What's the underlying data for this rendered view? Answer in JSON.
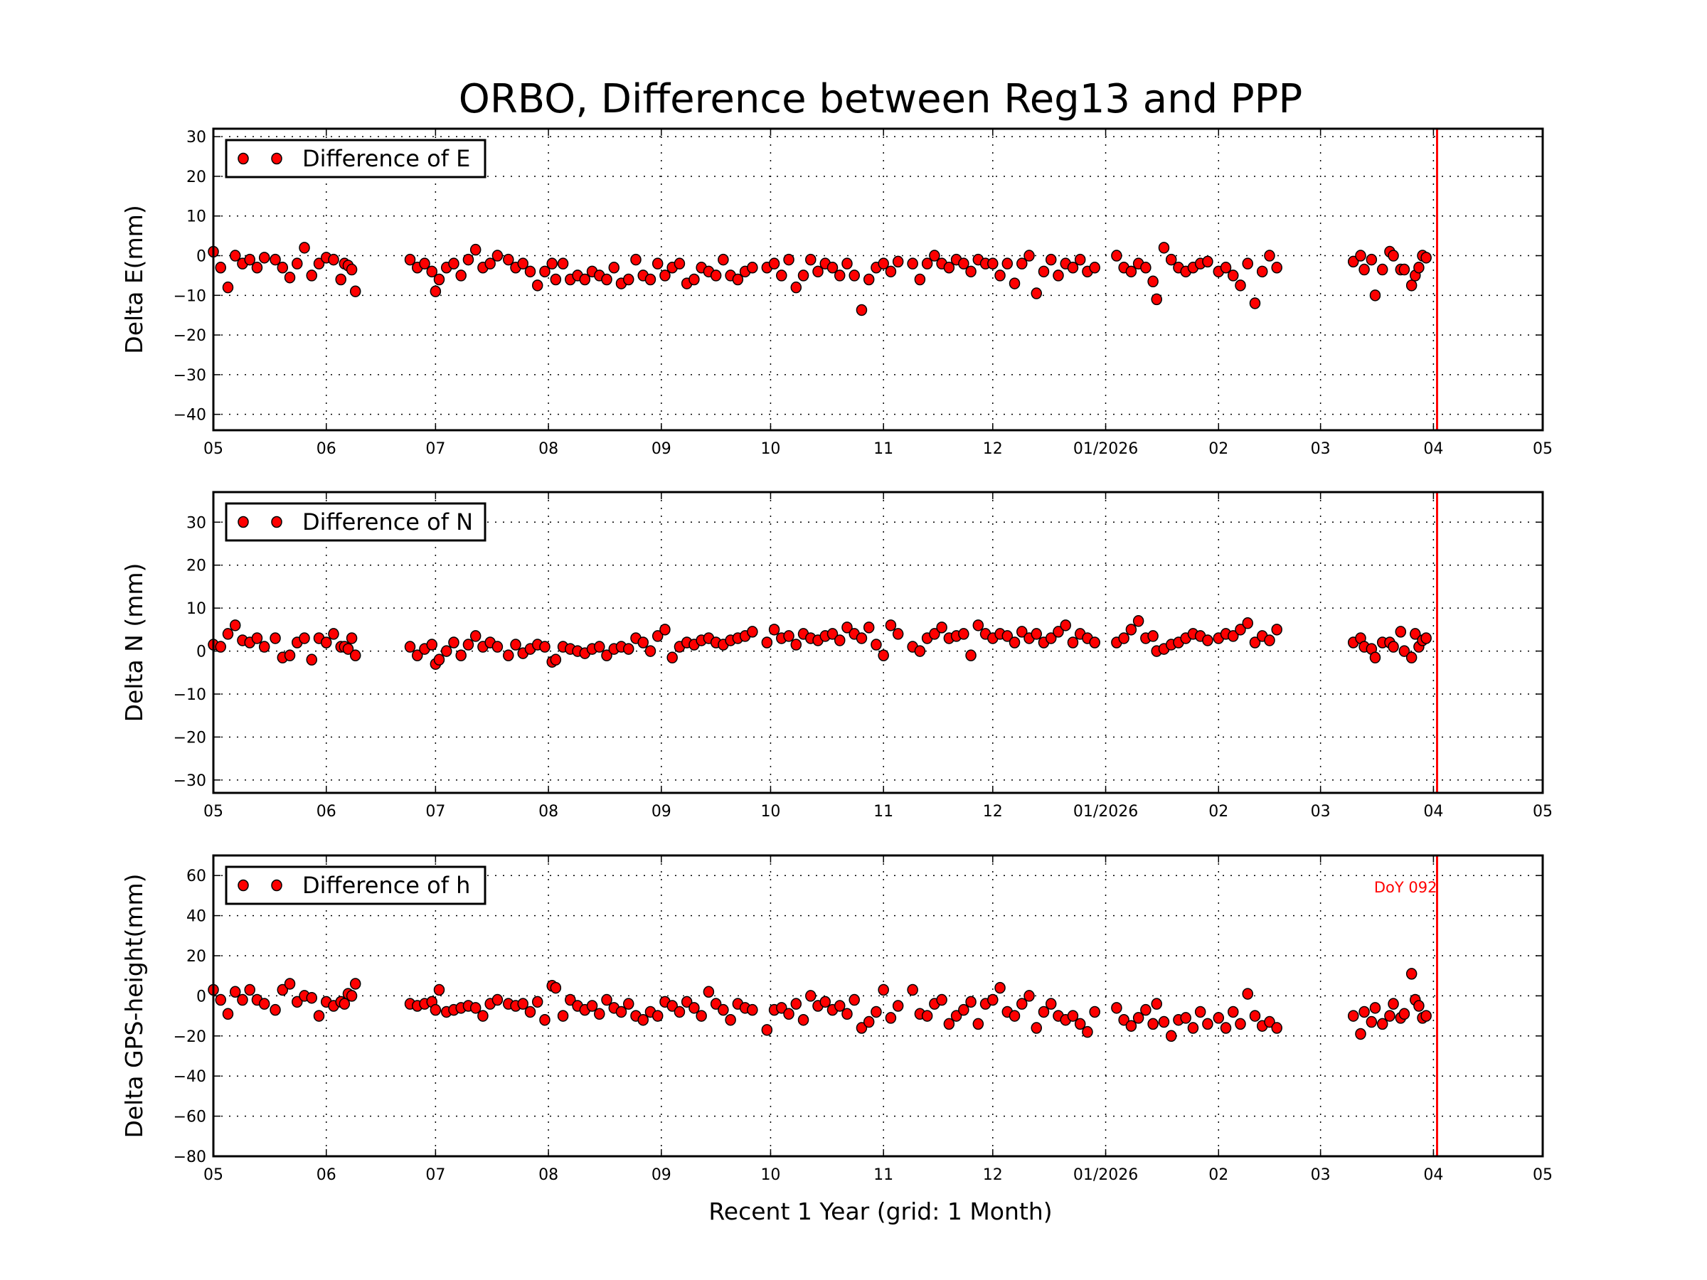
{
  "chart_data": {
    "type": "scatter",
    "title": "ORBO, Difference between Reg13 and PPP",
    "xlabel": "Recent 1 Year (grid: 1 Month)",
    "xlim": [
      "2025-05-01",
      "2026-05-01"
    ],
    "x_ticks": [
      {
        "date": "2025-05-01",
        "label": "05"
      },
      {
        "date": "2025-06-01",
        "label": "06"
      },
      {
        "date": "2025-07-01",
        "label": "07"
      },
      {
        "date": "2025-08-01",
        "label": "08"
      },
      {
        "date": "2025-09-01",
        "label": "09"
      },
      {
        "date": "2025-10-01",
        "label": "10"
      },
      {
        "date": "2025-11-01",
        "label": "11"
      },
      {
        "date": "2025-12-01",
        "label": "12"
      },
      {
        "date": "2026-01-01",
        "label": "01/2026"
      },
      {
        "date": "2026-02-01",
        "label": "02"
      },
      {
        "date": "2026-03-01",
        "label": "03"
      },
      {
        "date": "2026-04-01",
        "label": "04"
      },
      {
        "date": "2026-05-01",
        "label": "05"
      }
    ],
    "grid": true,
    "legend_position": "top-left",
    "marker_color": "#ff0000",
    "marker_edge_color": "#000000",
    "reference_line": {
      "date": "2026-04-02",
      "color": "#ff0000",
      "label": "DoY 092"
    },
    "dates": [
      "2025-05-01",
      "2025-05-03",
      "2025-05-05",
      "2025-05-07",
      "2025-05-09",
      "2025-05-11",
      "2025-05-13",
      "2025-05-15",
      "2025-05-18",
      "2025-05-20",
      "2025-05-22",
      "2025-05-24",
      "2025-05-26",
      "2025-05-28",
      "2025-05-30",
      "2025-06-01",
      "2025-06-03",
      "2025-06-05",
      "2025-06-06",
      "2025-06-07",
      "2025-06-08",
      "2025-06-09",
      "2025-06-24",
      "2025-06-26",
      "2025-06-28",
      "2025-06-30",
      "2025-07-01",
      "2025-07-02",
      "2025-07-04",
      "2025-07-06",
      "2025-07-08",
      "2025-07-10",
      "2025-07-12",
      "2025-07-14",
      "2025-07-16",
      "2025-07-18",
      "2025-07-21",
      "2025-07-23",
      "2025-07-25",
      "2025-07-27",
      "2025-07-29",
      "2025-07-31",
      "2025-08-02",
      "2025-08-03",
      "2025-08-05",
      "2025-08-07",
      "2025-08-09",
      "2025-08-11",
      "2025-08-13",
      "2025-08-15",
      "2025-08-17",
      "2025-08-19",
      "2025-08-21",
      "2025-08-23",
      "2025-08-25",
      "2025-08-27",
      "2025-08-29",
      "2025-08-31",
      "2025-09-02",
      "2025-09-04",
      "2025-09-06",
      "2025-09-08",
      "2025-09-10",
      "2025-09-12",
      "2025-09-14",
      "2025-09-16",
      "2025-09-18",
      "2025-09-20",
      "2025-09-22",
      "2025-09-24",
      "2025-09-26",
      "2025-09-30",
      "2025-10-02",
      "2025-10-04",
      "2025-10-06",
      "2025-10-08",
      "2025-10-10",
      "2025-10-12",
      "2025-10-14",
      "2025-10-16",
      "2025-10-18",
      "2025-10-20",
      "2025-10-22",
      "2025-10-24",
      "2025-10-26",
      "2025-10-28",
      "2025-10-30",
      "2025-11-01",
      "2025-11-03",
      "2025-11-05",
      "2025-11-09",
      "2025-11-11",
      "2025-11-13",
      "2025-11-15",
      "2025-11-17",
      "2025-11-19",
      "2025-11-21",
      "2025-11-23",
      "2025-11-25",
      "2025-11-27",
      "2025-11-29",
      "2025-12-01",
      "2025-12-03",
      "2025-12-05",
      "2025-12-07",
      "2025-12-09",
      "2025-12-11",
      "2025-12-13",
      "2025-12-15",
      "2025-12-17",
      "2025-12-19",
      "2025-12-21",
      "2025-12-23",
      "2025-12-25",
      "2025-12-27",
      "2025-12-29",
      "2026-01-04",
      "2026-01-06",
      "2026-01-08",
      "2026-01-10",
      "2026-01-12",
      "2026-01-14",
      "2026-01-15",
      "2026-01-17",
      "2026-01-19",
      "2026-01-21",
      "2026-01-23",
      "2026-01-25",
      "2026-01-27",
      "2026-01-29",
      "2026-02-01",
      "2026-02-03",
      "2026-02-05",
      "2026-02-07",
      "2026-02-09",
      "2026-02-11",
      "2026-02-13",
      "2026-02-15",
      "2026-02-17",
      "2026-03-10",
      "2026-03-12",
      "2026-03-13",
      "2026-03-15",
      "2026-03-16",
      "2026-03-18",
      "2026-03-20",
      "2026-03-21",
      "2026-03-23",
      "2026-03-24",
      "2026-03-26",
      "2026-03-27",
      "2026-03-28",
      "2026-03-29",
      "2026-03-30"
    ],
    "panels": [
      {
        "ylabel": "Delta E(mm)",
        "legend": "Difference of E",
        "ylim": [
          -44,
          32
        ],
        "yticks": [
          30,
          20,
          10,
          0,
          -10,
          -20,
          -30,
          -40
        ],
        "values": [
          1,
          -3,
          -8,
          0,
          -2,
          -1,
          -3,
          -0.5,
          -1,
          -3,
          -5.5,
          -2,
          2,
          -5,
          -2,
          -0.5,
          -1,
          -6,
          -2,
          -2.5,
          -3.5,
          -9,
          -1,
          -3,
          -2,
          -4,
          -9,
          -6,
          -3,
          -2,
          -5,
          -1,
          1.5,
          -3,
          -2,
          0,
          -1,
          -3,
          -2,
          -4,
          -7.5,
          -4,
          -2,
          -6,
          -2,
          -6,
          -5,
          -6,
          -4,
          -5,
          -6,
          -3,
          -7,
          -6,
          -1,
          -5,
          -6,
          -2,
          -5,
          -3,
          -2,
          -7,
          -6,
          -3,
          -4,
          -5,
          -1,
          -5,
          -6,
          -4,
          -3,
          -3,
          -2,
          -5,
          -1,
          -8,
          -5,
          -1,
          -4,
          -2,
          -3,
          -5,
          -2,
          -5,
          -13.7,
          -6,
          -3,
          -2,
          -4,
          -1.5,
          -2,
          -6,
          -2,
          0,
          -2,
          -3,
          -1,
          -2,
          -4,
          -1,
          -2,
          -2,
          -5,
          -2,
          -7,
          -2,
          0,
          -9.5,
          -4,
          -1,
          -5,
          -2,
          -3,
          -1,
          -4,
          -3,
          0,
          -3,
          -4,
          -2,
          -3,
          -6.5,
          -11,
          2,
          -1,
          -3,
          -4,
          -3,
          -2,
          -1.5,
          -4,
          -3,
          -5,
          -7.5,
          -2,
          -12,
          -4,
          0,
          -3,
          -1.5,
          0,
          -3.5,
          -1,
          -10,
          -3.5,
          1,
          0,
          -3.5,
          -3.5,
          -7.5,
          -5,
          -3,
          0,
          -0.5
        ]
      },
      {
        "ylabel": "Delta N (mm)",
        "legend": "Difference of N",
        "ylim": [
          -33,
          37
        ],
        "yticks": [
          30,
          20,
          10,
          0,
          -10,
          -20,
          -30
        ],
        "values": [
          1.5,
          1,
          4,
          6,
          2.5,
          2,
          3,
          1,
          3,
          -1.5,
          -1,
          2,
          3,
          -2,
          3,
          2,
          4,
          1,
          1,
          0.5,
          3,
          -1,
          1,
          -1,
          0.5,
          1.5,
          -3,
          -2,
          0,
          2,
          -1,
          1.5,
          3.5,
          1,
          2,
          1,
          -1,
          1.5,
          -0.5,
          0.5,
          1.5,
          1,
          -2.5,
          -2,
          1,
          0.5,
          0,
          -0.5,
          0.5,
          1,
          -1,
          0.5,
          1,
          0.5,
          3,
          2,
          0,
          3.5,
          5,
          -1.5,
          1,
          2,
          1.5,
          2.5,
          3,
          2,
          1.5,
          2.5,
          3,
          3.5,
          4.5,
          2,
          5,
          3,
          3.5,
          1.5,
          4,
          3,
          2.5,
          3.5,
          4,
          2.5,
          5.5,
          4,
          3,
          5.5,
          1.5,
          -1,
          6,
          4,
          1,
          0,
          3,
          4,
          5.5,
          3,
          3.5,
          4,
          -1,
          6,
          4,
          3,
          4,
          3.5,
          2,
          4.5,
          3,
          4,
          2,
          3,
          4.5,
          6,
          2,
          4,
          3,
          2,
          2,
          3,
          5,
          7,
          3,
          3.5,
          0,
          0.5,
          1.5,
          2,
          3,
          4,
          3.5,
          2.5,
          3,
          4,
          3.5,
          5,
          6.5,
          2,
          3.5,
          2.5,
          5,
          2,
          3,
          1,
          0.5,
          -1.5,
          2,
          2,
          1,
          4.5,
          0,
          -1.5,
          4,
          1,
          2.5,
          3
        ]
      },
      {
        "ylabel": "Delta GPS-height(mm)",
        "legend": "Difference of h",
        "ylim": [
          -80,
          70
        ],
        "yticks": [
          60,
          40,
          20,
          0,
          -20,
          -40,
          -60,
          -80
        ],
        "values": [
          3,
          -2,
          -9,
          2,
          -2,
          3,
          -2,
          -4,
          -7,
          3,
          6,
          -3,
          0,
          -1,
          -10,
          -3,
          -5,
          -3,
          -4,
          1,
          0,
          6,
          -4,
          -5,
          -4,
          -3,
          -7,
          3,
          -8,
          -7,
          -6,
          -5,
          -6,
          -10,
          -4,
          -2,
          -4,
          -5,
          -4,
          -8,
          -3,
          -12,
          5,
          4,
          -10,
          -2,
          -5,
          -7,
          -5,
          -9,
          -2,
          -6,
          -8,
          -4,
          -10,
          -12,
          -8,
          -10,
          -3,
          -5,
          -8,
          -3,
          -6,
          -10,
          2,
          -4,
          -7,
          -12,
          -4,
          -6,
          -7,
          -17,
          -7,
          -6,
          -9,
          -4,
          -12,
          0,
          -5,
          -3,
          -7,
          -5,
          -9,
          -2,
          -16,
          -13,
          -8,
          3,
          -11,
          -5,
          3,
          -9,
          -10,
          -4,
          -2,
          -14,
          -10,
          -7,
          -3,
          -14,
          -4,
          -2,
          4,
          -8,
          -10,
          -4,
          0,
          -16,
          -8,
          -4,
          -10,
          -12,
          -10,
          -14,
          -18,
          -8,
          -6,
          -12,
          -15,
          -11,
          -7,
          -14,
          -4,
          -13,
          -20,
          -12,
          -11,
          -16,
          -8,
          -14,
          -11,
          -16,
          -8,
          -14,
          1,
          -10,
          -15,
          -13,
          -16,
          -10,
          -19,
          -8,
          -13,
          -6,
          -14,
          -10,
          -4,
          -11,
          -9,
          11,
          -2,
          -5,
          -11,
          -10
        ]
      }
    ]
  }
}
